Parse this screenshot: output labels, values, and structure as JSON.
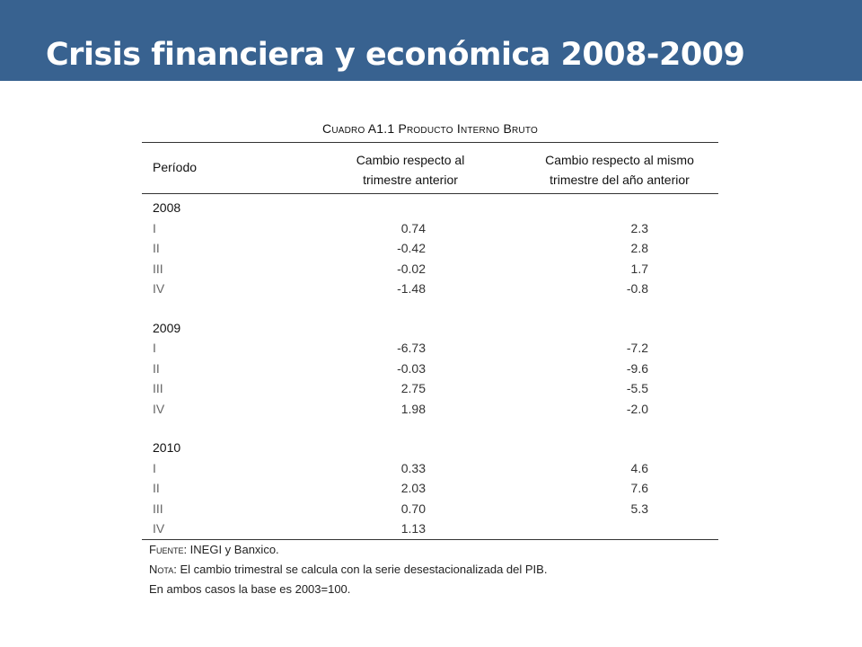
{
  "slide": {
    "title": "Crisis financiera y económica 2008-2009"
  },
  "table": {
    "caption": "Cuadro A1.1 Producto Interno Bruto",
    "headers": {
      "period": "Período",
      "quarterly_line1": "Cambio respecto al",
      "quarterly_line2": "trimestre anterior",
      "annual_line1": "Cambio respecto al mismo",
      "annual_line2": "trimestre del año anterior"
    },
    "groups": [
      {
        "year": "2008",
        "rows": [
          {
            "period": "I",
            "quarterly": "0.74",
            "annual": "2.3"
          },
          {
            "period": "II",
            "quarterly": "-0.42",
            "annual": "2.8"
          },
          {
            "period": "III",
            "quarterly": "-0.02",
            "annual": "1.7"
          },
          {
            "period": "IV",
            "quarterly": "-1.48",
            "annual": "-0.8"
          }
        ]
      },
      {
        "year": "2009",
        "rows": [
          {
            "period": "I",
            "quarterly": "-6.73",
            "annual": "-7.2"
          },
          {
            "period": "II",
            "quarterly": "-0.03",
            "annual": "-9.6"
          },
          {
            "period": "III",
            "quarterly": "2.75",
            "annual": "-5.5"
          },
          {
            "period": "IV",
            "quarterly": "1.98",
            "annual": "-2.0"
          }
        ]
      },
      {
        "year": "2010",
        "rows": [
          {
            "period": "I",
            "quarterly": "0.33",
            "annual": "4.6"
          },
          {
            "period": "II",
            "quarterly": "2.03",
            "annual": "7.6"
          },
          {
            "period": "III",
            "quarterly": "0.70",
            "annual": "5.3"
          },
          {
            "period": "IV",
            "quarterly": "1.13",
            "annual": ""
          }
        ]
      }
    ],
    "notes": {
      "source_label": "Fuente",
      "source_text": ": INEGI y Banxico.",
      "note_label": "Nota",
      "note_text": ": El cambio trimestral se calcula con la serie desestacionalizada del PIB.",
      "base_text": "En ambos casos la base es 2003=100."
    }
  },
  "colors": {
    "title_bar": "#386290",
    "title_text": "#ffffff"
  }
}
